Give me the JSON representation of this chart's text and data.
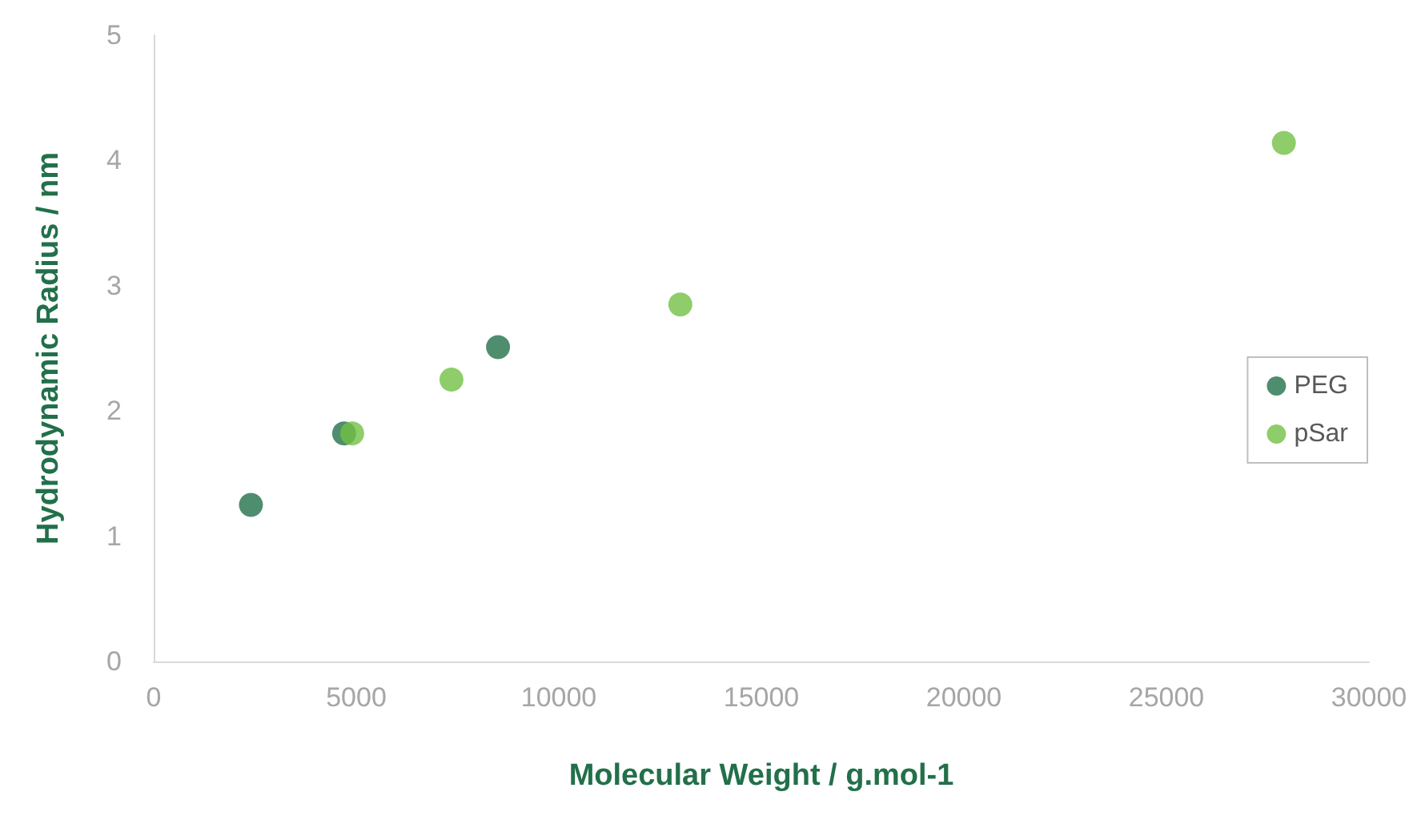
{
  "chart_data": {
    "type": "scatter",
    "xlabel": "Molecular Weight / g.mol-1",
    "ylabel": "Hydrodynamic Radius / nm",
    "series": [
      {
        "name": "PEG",
        "color": "#22704a",
        "x": [
          2400,
          4700,
          8500
        ],
        "values": [
          1.25,
          1.82,
          2.51
        ]
      },
      {
        "name": "pSar",
        "color": "#72c043",
        "x": [
          4900,
          7350,
          13000,
          27900
        ],
        "values": [
          1.82,
          2.25,
          2.85,
          4.14
        ]
      }
    ],
    "xlim": [
      0,
      30000
    ],
    "xticks": [
      0,
      5000,
      10000,
      15000,
      20000,
      25000,
      30000
    ],
    "ylim": [
      0,
      5
    ],
    "yticks": [
      0,
      1,
      2,
      3,
      4,
      5
    ],
    "grid": false,
    "legend": "right",
    "marker": "circle"
  }
}
